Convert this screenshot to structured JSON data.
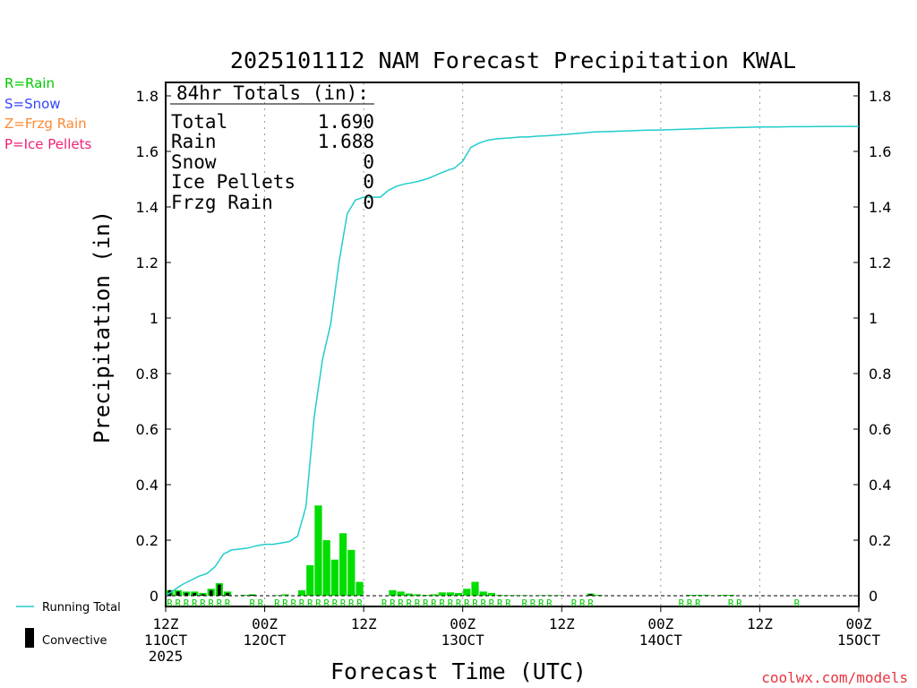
{
  "chart_data": {
    "type": "bar+line",
    "title": "2025101112 NAM Forecast Precipitation KWAL",
    "xlabel": "Forecast Time (UTC)",
    "ylabel": "Precipitation (in)",
    "ylim": [
      0,
      1.85
    ],
    "xlim_hours": [
      0,
      84
    ],
    "y_ticks": [
      "0",
      "0.2",
      "0.4",
      "0.6",
      "0.8",
      "1",
      "1.2",
      "1.4",
      "1.6",
      "1.8"
    ],
    "y_tick_values": [
      0,
      0.2,
      0.4,
      0.6,
      0.8,
      1.0,
      1.2,
      1.4,
      1.6,
      1.8
    ],
    "x_ticks": [
      {
        "hour": 0,
        "label": "12Z",
        "date": "11OCT",
        "year": "2025"
      },
      {
        "hour": 12,
        "label": "00Z",
        "date": "12OCT",
        "year": ""
      },
      {
        "hour": 24,
        "label": "12Z",
        "date": "",
        "year": ""
      },
      {
        "hour": 36,
        "label": "00Z",
        "date": "13OCT",
        "year": ""
      },
      {
        "hour": 48,
        "label": "12Z",
        "date": "",
        "year": ""
      },
      {
        "hour": 60,
        "label": "00Z",
        "date": "14OCT",
        "year": ""
      },
      {
        "hour": 72,
        "label": "12Z",
        "date": "",
        "year": ""
      },
      {
        "hour": 84,
        "label": "00Z",
        "date": "15OCT",
        "year": ""
      }
    ],
    "gridlines_hours": [
      12,
      24,
      36,
      48,
      60,
      72
    ],
    "totals": {
      "header": "84hr Totals (in):",
      "rows": [
        {
          "label": "Total",
          "value": "1.690"
        },
        {
          "label": "Rain",
          "value": "1.688"
        },
        {
          "label": "Snow",
          "value": "0"
        },
        {
          "label": "Ice Pellets",
          "value": "0"
        },
        {
          "label": "Frzg Rain",
          "value": "0"
        }
      ]
    },
    "precip_type_legend": [
      {
        "text": "R=Rain",
        "color": "#00cc00"
      },
      {
        "text": "S=Snow",
        "color": "#3344ff"
      },
      {
        "text": "Z=Frzg Rain",
        "color": "#ff8833"
      },
      {
        "text": "P=Ice Pellets",
        "color": "#ee2277"
      }
    ],
    "series_legend": {
      "running_total": "Running Total",
      "convective": "Convective"
    },
    "hourly_precip": {
      "hours": [
        1,
        2,
        3,
        4,
        5,
        6,
        7,
        8,
        9,
        10,
        11,
        12,
        13,
        14,
        15,
        16,
        17,
        18,
        19,
        20,
        21,
        22,
        23,
        24,
        25,
        26,
        27,
        28,
        29,
        30,
        31,
        32,
        33,
        34,
        35,
        36,
        37,
        38,
        39,
        40,
        41,
        42,
        43,
        44,
        45,
        46,
        47,
        48,
        49,
        50,
        51,
        52,
        53,
        54,
        55,
        56,
        57,
        58,
        59,
        60,
        61,
        62,
        63,
        64,
        65,
        66,
        67,
        68,
        69,
        70,
        71,
        72,
        73,
        74,
        75,
        76,
        77,
        78,
        79,
        80,
        81,
        82,
        83,
        84
      ],
      "total": [
        0.02,
        0.02,
        0.015,
        0.015,
        0.01,
        0.025,
        0.045,
        0.015,
        0,
        0.003,
        0.005,
        0,
        0,
        0.002,
        0.005,
        0,
        0.02,
        0.11,
        0.325,
        0.2,
        0.13,
        0.225,
        0.165,
        0.05,
        0,
        0,
        0,
        0.02,
        0.015,
        0.008,
        0.005,
        0.003,
        0.005,
        0.012,
        0.012,
        0.01,
        0.025,
        0.05,
        0.015,
        0.01,
        0.003,
        0.002,
        0.002,
        0.002,
        0,
        0.002,
        0.002,
        0.002,
        0,
        0,
        0,
        0.008,
        0.003,
        0,
        0,
        0,
        0,
        0,
        0,
        0,
        0,
        0,
        0,
        0.003,
        0.003,
        0.003,
        0,
        0.003,
        0.003,
        0,
        0,
        0,
        0,
        0,
        0,
        0,
        0,
        0,
        0,
        0,
        0,
        0,
        0,
        0
      ],
      "convective": [
        0.02,
        0.015,
        0.01,
        0.01,
        0.005,
        0.02,
        0.04,
        0.01,
        0,
        0,
        0.003,
        0,
        0,
        0,
        0,
        0,
        0,
        0,
        0,
        0,
        0,
        0,
        0,
        0,
        0,
        0,
        0,
        0,
        0,
        0,
        0,
        0,
        0,
        0,
        0,
        0,
        0,
        0,
        0,
        0,
        0,
        0,
        0,
        0,
        0,
        0,
        0,
        0,
        0,
        0,
        0,
        0.006,
        0,
        0,
        0,
        0,
        0,
        0,
        0,
        0,
        0,
        0,
        0,
        0,
        0,
        0,
        0,
        0,
        0,
        0,
        0,
        0,
        0,
        0,
        0,
        0,
        0,
        0,
        0,
        0,
        0,
        0,
        0,
        0
      ],
      "type_marks": [
        "R",
        "R",
        "R",
        "R",
        "R",
        "R",
        "R",
        "R",
        "",
        "",
        "R",
        "R",
        "",
        "R",
        "R",
        "R",
        "R",
        "R",
        "R",
        "R",
        "R",
        "R",
        "R",
        "R",
        "",
        "",
        "R",
        "R",
        "R",
        "R",
        "R",
        "R",
        "R",
        "R",
        "R",
        "R",
        "R",
        "R",
        "R",
        "R",
        "R",
        "R",
        "",
        "R",
        "R",
        "R",
        "R",
        "",
        "",
        "R",
        "R",
        "R",
        "",
        "",
        "",
        "",
        "",
        "",
        "",
        "",
        "",
        "",
        "R",
        "R",
        "R",
        "",
        "",
        "",
        "R",
        "R",
        "",
        "",
        "",
        "",
        "",
        "",
        "R",
        "",
        "",
        "",
        "",
        "",
        "",
        ""
      ]
    },
    "running_total": {
      "hours": [
        0,
        1,
        2,
        3,
        4,
        5,
        6,
        7,
        8,
        9,
        10,
        11,
        12,
        13,
        14,
        15,
        16,
        17,
        18,
        19,
        20,
        21,
        22,
        23,
        24,
        25,
        26,
        27,
        28,
        29,
        30,
        31,
        32,
        33,
        34,
        35,
        36,
        37,
        38,
        39,
        40,
        41,
        42,
        43,
        44,
        45,
        46,
        47,
        48,
        50,
        52,
        54,
        56,
        58,
        60,
        62,
        64,
        66,
        68,
        70,
        72,
        74,
        76,
        78,
        80,
        82,
        84
      ],
      "values": [
        0,
        0.02,
        0.04,
        0.055,
        0.07,
        0.08,
        0.105,
        0.15,
        0.165,
        0.168,
        0.172,
        0.18,
        0.185,
        0.185,
        0.19,
        0.195,
        0.215,
        0.32,
        0.645,
        0.85,
        0.98,
        1.2,
        1.375,
        1.425,
        1.435,
        1.435,
        1.435,
        1.46,
        1.475,
        1.483,
        1.488,
        1.495,
        1.505,
        1.518,
        1.53,
        1.54,
        1.565,
        1.615,
        1.63,
        1.64,
        1.645,
        1.647,
        1.649,
        1.652,
        1.652,
        1.655,
        1.656,
        1.658,
        1.66,
        1.665,
        1.67,
        1.672,
        1.674,
        1.676,
        1.677,
        1.679,
        1.681,
        1.683,
        1.685,
        1.686,
        1.688,
        1.688,
        1.689,
        1.689,
        1.69,
        1.69,
        1.69
      ]
    },
    "colors": {
      "precip_bar": "#00dd00",
      "convective_bar": "#000000",
      "running_total_line": "#22cccc",
      "type_mark": "#00cc00",
      "credit": "#e8343f"
    }
  },
  "credit": "coolwx.com/models"
}
